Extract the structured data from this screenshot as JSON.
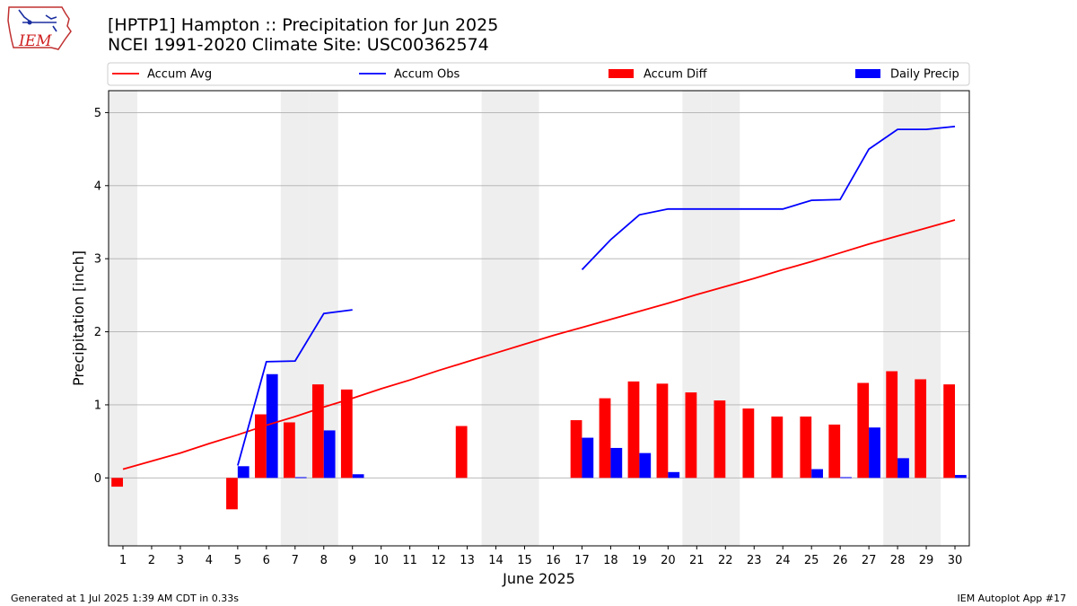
{
  "header": {
    "title": "[HPTP1] Hampton :: Precipitation for Jun 2025",
    "subtitle": "NCEI 1991-2020 Climate Site: USC00362574"
  },
  "logo": {
    "text": "IEM",
    "icon": "iowa-map-icon"
  },
  "footer": {
    "generated": "Generated at 1 Jul 2025 1:39 AM CDT in 0.33s",
    "app": "IEM Autoplot App #17"
  },
  "colors": {
    "accum_avg": "#ff0000",
    "accum_obs": "#0000ff",
    "accum_diff": "#ff0000",
    "daily_precip": "#0000ff",
    "weekend_shade": "#eeeeee",
    "grid": "#b0b0b0"
  },
  "chart_data": {
    "type": "bar",
    "xlabel": "June 2025",
    "ylabel": "Precipitation [inch]",
    "xlim": [
      0.5,
      30.5
    ],
    "ylim": [
      -0.93,
      5.3
    ],
    "yticks": [
      0,
      1,
      2,
      3,
      4,
      5
    ],
    "days": [
      1,
      2,
      3,
      4,
      5,
      6,
      7,
      8,
      9,
      10,
      11,
      12,
      13,
      14,
      15,
      16,
      17,
      18,
      19,
      20,
      21,
      22,
      23,
      24,
      25,
      26,
      27,
      28,
      29,
      30
    ],
    "weekend_days": [
      1,
      7,
      8,
      14,
      15,
      21,
      22,
      28,
      29
    ],
    "grid": true,
    "legend_position": "top, above plot",
    "legend": [
      "Accum Avg",
      "Accum Obs",
      "Accum Diff",
      "Daily Precip"
    ],
    "series": [
      {
        "name": "Accum Avg",
        "kind": "line",
        "values": [
          0.12,
          0.23,
          0.34,
          0.47,
          0.59,
          0.72,
          0.84,
          0.97,
          1.09,
          1.22,
          1.34,
          1.47,
          1.59,
          1.71,
          1.83,
          1.95,
          2.06,
          2.17,
          2.28,
          2.39,
          2.51,
          2.62,
          2.73,
          2.85,
          2.96,
          3.08,
          3.2,
          3.31,
          3.42,
          3.53
        ]
      },
      {
        "name": "Accum Obs",
        "kind": "line",
        "values": [
          null,
          null,
          null,
          null,
          0.17,
          1.59,
          1.6,
          2.25,
          2.3,
          null,
          null,
          null,
          null,
          null,
          null,
          null,
          2.85,
          3.26,
          3.6,
          3.68,
          3.68,
          3.68,
          3.68,
          3.68,
          3.8,
          3.81,
          4.5,
          4.77,
          4.77,
          4.81
        ]
      },
      {
        "name": "Accum Diff",
        "kind": "bar",
        "values": [
          -0.12,
          null,
          null,
          null,
          -0.43,
          0.87,
          0.76,
          1.28,
          1.21,
          null,
          null,
          null,
          0.71,
          null,
          null,
          null,
          0.79,
          1.09,
          1.32,
          1.29,
          1.17,
          1.06,
          0.95,
          0.84,
          0.84,
          0.73,
          1.3,
          1.46,
          1.35,
          1.28
        ]
      },
      {
        "name": "Daily Precip",
        "kind": "bar",
        "values": [
          0,
          0,
          0,
          0,
          0.16,
          1.42,
          0.01,
          0.65,
          0.05,
          0,
          0,
          0,
          0,
          0,
          0,
          0,
          0.55,
          0.41,
          0.34,
          0.08,
          0,
          0,
          0,
          0,
          0.12,
          0.01,
          0.69,
          0.27,
          0,
          0.04
        ]
      }
    ]
  }
}
